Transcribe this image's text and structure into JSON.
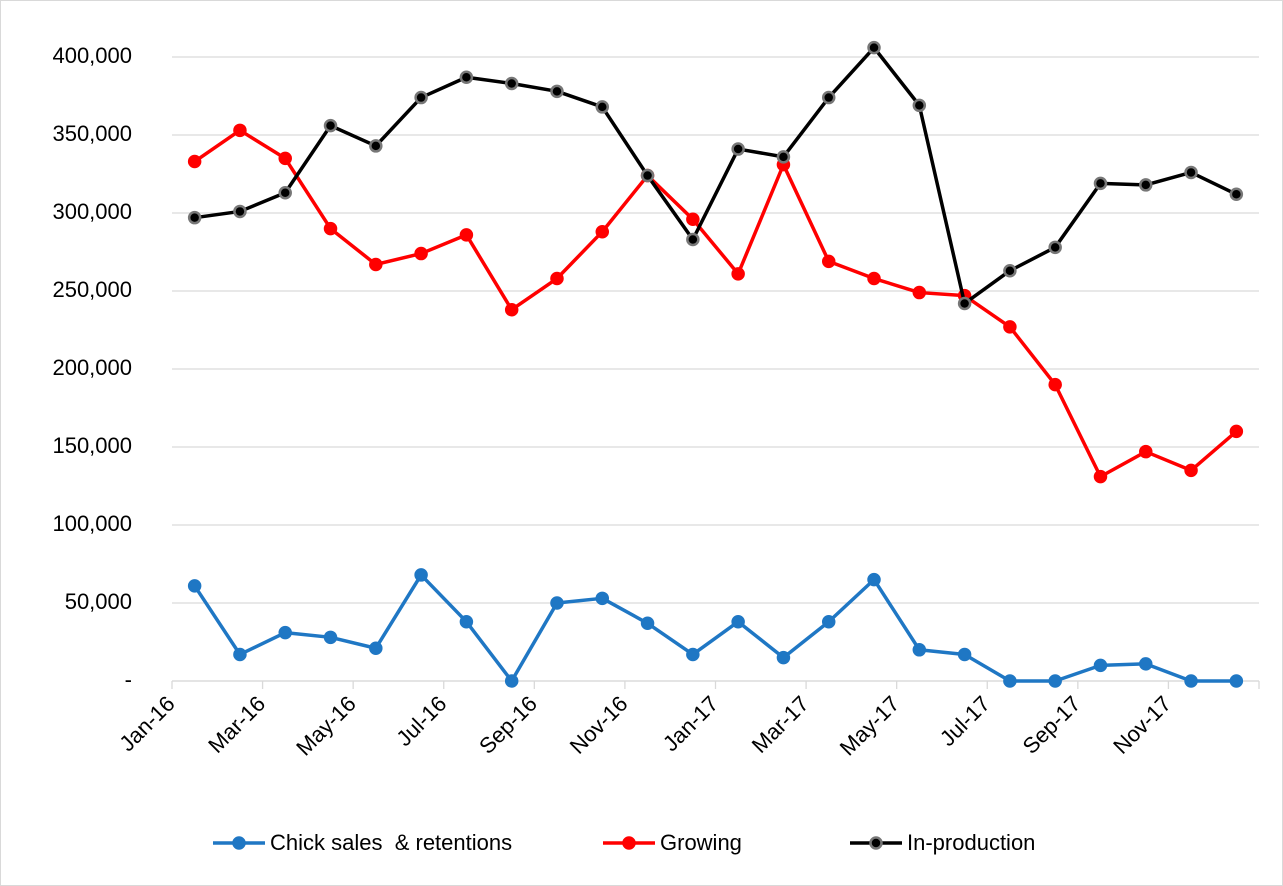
{
  "chart_data": {
    "type": "line",
    "categories": [
      "Jan-16",
      null,
      "Mar-16",
      null,
      "May-16",
      null,
      "Jul-16",
      null,
      "Sep-16",
      null,
      "Nov-16",
      null,
      "Jan-17",
      null,
      "Mar-17",
      null,
      "May-17",
      null,
      "Jul-17",
      null,
      "Sep-17",
      null,
      "Nov-17",
      null
    ],
    "series": [
      {
        "name": "Chick sales  & retentions",
        "color": "#1f77c4",
        "values": [
          61000,
          17000,
          31000,
          28000,
          21000,
          68000,
          38000,
          0,
          50000,
          53000,
          37000,
          17000,
          38000,
          15000,
          38000,
          65000,
          20000,
          17000,
          0,
          0,
          10000,
          11000,
          0,
          0
        ]
      },
      {
        "name": "Growing",
        "color": "#ff0000",
        "values": [
          333000,
          353000,
          335000,
          290000,
          267000,
          274000,
          286000,
          238000,
          258000,
          288000,
          324000,
          296000,
          261000,
          331000,
          269000,
          258000,
          249000,
          247000,
          227000,
          190000,
          131000,
          147000,
          135000,
          160000
        ]
      },
      {
        "name": "In-production",
        "color": "#000000",
        "values": [
          297000,
          301000,
          313000,
          356000,
          343000,
          374000,
          387000,
          383000,
          378000,
          368000,
          324000,
          283000,
          341000,
          336000,
          374000,
          406000,
          369000,
          242000,
          263000,
          278000,
          319000,
          318000,
          326000,
          312000
        ]
      }
    ],
    "ylim": [
      0,
      400000
    ],
    "yticks": [
      {
        "value": 0,
        "label": "-"
      },
      {
        "value": 50000,
        "label": "50,000"
      },
      {
        "value": 100000,
        "label": "100,000"
      },
      {
        "value": 150000,
        "label": "150,000"
      },
      {
        "value": 200000,
        "label": "200,000"
      },
      {
        "value": 250000,
        "label": "250,000"
      },
      {
        "value": 300000,
        "label": "300,000"
      },
      {
        "value": 350000,
        "label": "350,000"
      },
      {
        "value": 400000,
        "label": "400,000"
      }
    ],
    "grid": true,
    "legend": "bottom"
  }
}
